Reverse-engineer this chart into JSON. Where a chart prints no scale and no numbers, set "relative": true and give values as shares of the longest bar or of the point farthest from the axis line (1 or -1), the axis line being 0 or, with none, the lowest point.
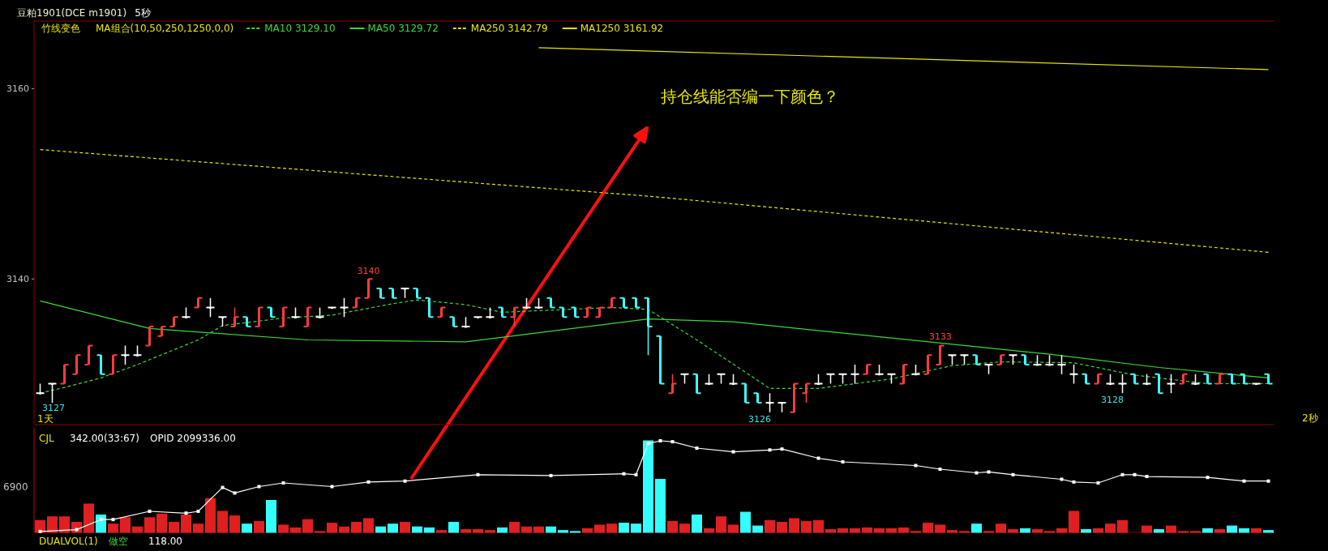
{
  "chart_data": [
    {
      "type": "candlestick",
      "title": "豆粕1901(DCE m1901)",
      "categories": [
        null,
        null,
        null,
        null,
        null,
        null,
        null,
        null,
        null,
        null,
        null,
        null,
        null,
        null,
        null,
        null,
        null,
        null,
        null,
        null,
        null,
        null,
        null,
        null,
        null,
        null,
        null,
        null,
        null,
        null,
        null,
        null,
        null,
        null,
        null,
        null,
        null,
        null,
        null,
        null,
        null,
        null,
        null,
        null,
        null,
        null,
        null,
        null,
        null,
        null,
        null,
        null,
        null,
        null,
        null,
        null,
        null,
        null,
        null,
        null,
        null,
        null,
        null,
        null,
        null,
        null,
        null,
        null,
        null,
        null,
        null,
        null,
        null,
        null,
        null,
        null,
        null,
        null,
        null,
        null,
        null,
        null,
        null,
        null,
        null,
        null,
        null,
        null,
        null,
        null,
        null,
        null,
        null,
        null,
        null,
        null,
        null,
        null,
        null,
        null,
        null,
        null
      ],
      "ohlc": [
        [
          3128,
          3129,
          3128,
          3128
        ],
        [
          3129,
          3129,
          3127,
          3129
        ],
        [
          3129,
          3131,
          3129,
          3131
        ],
        [
          3130,
          3132,
          3130,
          3132
        ],
        [
          3131,
          3133,
          3131,
          3133
        ],
        [
          3132,
          3132,
          3130,
          3130
        ],
        [
          3130,
          3132,
          3130,
          3132
        ],
        [
          3132,
          3133,
          3131,
          3132
        ],
        [
          3132,
          3133,
          3132,
          3132
        ],
        [
          3133,
          3135,
          3133,
          3135
        ],
        [
          3134,
          3135,
          3134,
          3135
        ],
        [
          3135,
          3136,
          3135,
          3136
        ],
        [
          3136,
          3137,
          3136,
          3136
        ],
        [
          3137,
          3138,
          3137,
          3138
        ],
        [
          3137,
          3138,
          3136,
          3137
        ],
        [
          3136,
          3136,
          3135,
          3136
        ],
        [
          3135,
          3137,
          3135,
          3136
        ],
        [
          3136,
          3136,
          3135,
          3135
        ],
        [
          3135,
          3137,
          3135,
          3137
        ],
        [
          3137,
          3137,
          3136,
          3136
        ],
        [
          3135,
          3137,
          3135,
          3137
        ],
        [
          3136,
          3137,
          3136,
          3136
        ],
        [
          3135,
          3137,
          3135,
          3137
        ],
        [
          3136,
          3137,
          3136,
          3136
        ],
        [
          3137,
          3137,
          3137,
          3137
        ],
        [
          3137,
          3138,
          3136,
          3137
        ],
        [
          3137,
          3138,
          3137,
          3138
        ],
        [
          3138,
          3140,
          3138,
          3140
        ],
        [
          3139,
          3139,
          3138,
          3138
        ],
        [
          3139,
          3139,
          3138,
          3138
        ],
        [
          3139,
          3139,
          3138,
          3139
        ],
        [
          3139,
          3139,
          3138,
          3138
        ],
        [
          3138,
          3138,
          3136,
          3136
        ],
        [
          3136,
          3137,
          3136,
          3137
        ],
        [
          3136,
          3136,
          3135,
          3135
        ],
        [
          3135,
          3136,
          3135,
          3135
        ],
        [
          3136,
          3136,
          3136,
          3136
        ],
        [
          3136,
          3137,
          3136,
          3136
        ],
        [
          3137,
          3137,
          3136,
          3136
        ],
        [
          3136,
          3137,
          3135,
          3137
        ],
        [
          3137,
          3138,
          3137,
          3137
        ],
        [
          3137,
          3138,
          3137,
          3137
        ],
        [
          3138,
          3138,
          3137,
          3137
        ],
        [
          3137,
          3137,
          3136,
          3136
        ],
        [
          3137,
          3137,
          3136,
          3136
        ],
        [
          3136,
          3137,
          3136,
          3137
        ],
        [
          3136,
          3137,
          3136,
          3137
        ],
        [
          3137,
          3138,
          3137,
          3138
        ],
        [
          3138,
          3138,
          3137,
          3137
        ],
        [
          3138,
          3138,
          3137,
          3137
        ],
        [
          3138,
          3138,
          3132,
          3135
        ],
        [
          3134,
          3134,
          3129,
          3129
        ],
        [
          3128,
          3130,
          3128,
          3129
        ],
        [
          3130,
          3130,
          3129,
          3130
        ],
        [
          3130,
          3130,
          3128,
          3128
        ],
        [
          3129,
          3130,
          3129,
          3129
        ],
        [
          3130,
          3130,
          3129,
          3130
        ],
        [
          3129,
          3130,
          3129,
          3129
        ],
        [
          3129,
          3129,
          3127,
          3127
        ],
        [
          3128,
          3128,
          3127,
          3127
        ],
        [
          3127,
          3128,
          3126,
          3127
        ],
        [
          3127,
          3127,
          3126,
          3127
        ],
        [
          3126,
          3129,
          3126,
          3129
        ],
        [
          3128,
          3129,
          3127,
          3129
        ],
        [
          3129,
          3130,
          3129,
          3129
        ],
        [
          3130,
          3130,
          3129,
          3130
        ],
        [
          3130,
          3130,
          3129,
          3130
        ],
        [
          3130,
          3131,
          3129,
          3130
        ],
        [
          3130,
          3131,
          3130,
          3131
        ],
        [
          3130,
          3131,
          3130,
          3130
        ],
        [
          3130,
          3130,
          3129,
          3130
        ],
        [
          3129,
          3131,
          3129,
          3131
        ],
        [
          3130,
          3131,
          3130,
          3130
        ],
        [
          3130,
          3132,
          3130,
          3132
        ],
        [
          3131,
          3133,
          3131,
          3133
        ],
        [
          3132,
          3132,
          3131,
          3132
        ],
        [
          3132,
          3132,
          3131,
          3132
        ],
        [
          3132,
          3132,
          3131,
          3131
        ],
        [
          3131,
          3131,
          3130,
          3131
        ],
        [
          3131,
          3132,
          3131,
          3132
        ],
        [
          3132,
          3132,
          3131,
          3132
        ],
        [
          3132,
          3132,
          3131,
          3131
        ],
        [
          3131,
          3132,
          3131,
          3131
        ],
        [
          3131,
          3132,
          3131,
          3131
        ],
        [
          3131,
          3132,
          3130,
          3131
        ],
        [
          3130,
          3131,
          3129,
          3130
        ],
        [
          3130,
          3130,
          3129,
          3129
        ],
        [
          3129,
          3130,
          3129,
          3130
        ],
        [
          3129,
          3130,
          3129,
          3129
        ],
        [
          3129,
          3130,
          3128,
          3129
        ],
        [
          3130,
          3130,
          3129,
          3129
        ],
        [
          3129,
          3130,
          3129,
          3129
        ],
        [
          3130,
          3130,
          3128,
          3128
        ],
        [
          3129,
          3130,
          3128,
          3129
        ],
        [
          3129,
          3130,
          3129,
          3130
        ],
        [
          3129,
          3130,
          3129,
          3129
        ],
        [
          3130,
          3130,
          3129,
          3129
        ],
        [
          3129,
          3130,
          3129,
          3130
        ],
        [
          3130,
          3130,
          3129,
          3129
        ],
        [
          3130,
          3130,
          3129,
          3129
        ],
        [
          3129,
          3129,
          3129,
          3129
        ],
        [
          3130,
          3130,
          3129,
          3129
        ]
      ],
      "colors": [
        "#ffffff",
        "#ffffff",
        "#ff3c3c",
        "#ff3c3c",
        "#ff3c3c",
        "#40ffff",
        "#ff3c3c",
        "#ffffff",
        "#ffffff",
        "#ff3c3c",
        "#ff3c3c",
        "#ff3c3c",
        "#ffffff",
        "#ff3c3c",
        "#ffffff",
        "#ffffff",
        "#ff3c3c",
        "#40ffff",
        "#ff3c3c",
        "#40ffff",
        "#ff3c3c",
        "#ffffff",
        "#ff3c3c",
        "#ffffff",
        "#ffffff",
        "#ffffff",
        "#ff3c3c",
        "#ff3c3c",
        "#40ffff",
        "#40ffff",
        "#ffffff",
        "#40ffff",
        "#40ffff",
        "#ff3c3c",
        "#40ffff",
        "#ffffff",
        "#ffffff",
        "#ffffff",
        "#40ffff",
        "#ff3c3c",
        "#ffffff",
        "#ffffff",
        "#40ffff",
        "#40ffff",
        "#40ffff",
        "#ff3c3c",
        "#ff3c3c",
        "#ff3c3c",
        "#40ffff",
        "#40ffff",
        "#40ffff",
        "#40ffff",
        "#ff3c3c",
        "#ffffff",
        "#40ffff",
        "#ffffff",
        "#ffffff",
        "#ffffff",
        "#40ffff",
        "#40ffff",
        "#ffffff",
        "#ffffff",
        "#ff3c3c",
        "#ff3c3c",
        "#ffffff",
        "#ffffff",
        "#ffffff",
        "#ffffff",
        "#ff3c3c",
        "#ffffff",
        "#ffffff",
        "#ff3c3c",
        "#ffffff",
        "#ff3c3c",
        "#ff3c3c",
        "#ffffff",
        "#ffffff",
        "#40ffff",
        "#ffffff",
        "#ff3c3c",
        "#ffffff",
        "#40ffff",
        "#ffffff",
        "#ffffff",
        "#ffffff",
        "#ffffff",
        "#40ffff",
        "#ff3c3c",
        "#ffffff",
        "#ffffff",
        "#40ffff",
        "#ffffff",
        "#40ffff",
        "#ffffff",
        "#ff3c3c",
        "#ffffff",
        "#40ffff",
        "#ff3c3c",
        "#40ffff",
        "#40ffff",
        "#ffffff",
        "#40ffff"
      ],
      "series": [
        {
          "name": "MA10 3129.10",
          "type": "line",
          "color": "#3ad83a",
          "line_style": "dashed",
          "values": [
            3128.0,
            null,
            3128.6,
            null,
            null,
            3129.6,
            null,
            null,
            3131.0,
            null,
            null,
            null,
            null,
            3133.6,
            null,
            3135.1,
            null,
            null,
            null,
            null,
            3135.9,
            null,
            null,
            null,
            3136.2,
            null,
            null,
            null,
            null,
            3137.4,
            null,
            3137.8,
            null,
            null,
            null,
            3137.3,
            null,
            null,
            3136.5,
            null,
            null,
            null,
            null,
            null,
            null,
            null,
            null,
            3137.0,
            null,
            null,
            3136.8,
            null,
            null,
            null,
            3133.6,
            null,
            null,
            null,
            null,
            null,
            3128.5,
            null,
            null,
            null,
            3128.5,
            null,
            null,
            null,
            null,
            null,
            3129.5,
            null,
            null,
            null,
            null,
            3130.9,
            null,
            null,
            null,
            3131.3,
            null,
            null,
            null,
            null,
            null,
            3131.2,
            null,
            null,
            null,
            null,
            3129.9,
            null,
            null,
            null,
            null,
            null,
            3129.0,
            null,
            null,
            null,
            null,
            3129.0
          ]
        },
        {
          "name": "MA50 3129.72",
          "type": "line",
          "color": "#3ad83a",
          "line_style": "solid",
          "values": [
            3137.7,
            null,
            null,
            null,
            null,
            null,
            null,
            null,
            null,
            3134.8,
            null,
            null,
            null,
            null,
            null,
            null,
            null,
            null,
            null,
            null,
            null,
            null,
            3133.6,
            null,
            null,
            null,
            null,
            null,
            null,
            null,
            null,
            null,
            null,
            null,
            null,
            3133.4,
            null,
            null,
            null,
            null,
            null,
            null,
            null,
            null,
            null,
            null,
            null,
            null,
            null,
            null,
            3135.8,
            null,
            null,
            null,
            null,
            null,
            null,
            3135.5,
            null,
            null,
            null,
            null,
            null,
            null,
            null,
            null,
            null,
            null,
            null,
            null,
            3133.8,
            null,
            null,
            null,
            null,
            null,
            null,
            null,
            null,
            null,
            null,
            null,
            null,
            3132.1,
            null,
            null,
            null,
            null,
            null,
            null,
            null,
            null,
            3130.7,
            null,
            null,
            null,
            null,
            null,
            null,
            null,
            null,
            3129.6
          ]
        },
        {
          "name": "MA250 3142.79",
          "type": "line",
          "color": "#e6e600",
          "line_style": "dashed",
          "values": [
            3153.6,
            null,
            null,
            null,
            null,
            null,
            null,
            null,
            null,
            null,
            null,
            null,
            null,
            null,
            null,
            null,
            null,
            null,
            null,
            null,
            null,
            null,
            null,
            null,
            null,
            null,
            null,
            null,
            null,
            null,
            null,
            null,
            null,
            null,
            null,
            null,
            null,
            null,
            null,
            null,
            null,
            null,
            null,
            null,
            null,
            null,
            null,
            null,
            null,
            null,
            3148.7,
            null,
            null,
            null,
            null,
            null,
            null,
            null,
            null,
            null,
            null,
            null,
            null,
            null,
            null,
            null,
            null,
            null,
            null,
            null,
            null,
            null,
            null,
            null,
            null,
            null,
            null,
            null,
            null,
            null,
            null,
            null,
            null,
            null,
            null,
            null,
            null,
            null,
            null,
            null,
            null,
            null,
            null,
            null,
            null,
            null,
            null,
            null,
            null,
            null,
            null,
            3142.8
          ]
        },
        {
          "name": "MA1250 3161.92",
          "type": "line",
          "color": "#e6e600",
          "line_style": "solid",
          "values": [
            null,
            null,
            null,
            null,
            null,
            null,
            null,
            null,
            null,
            null,
            null,
            null,
            null,
            null,
            null,
            null,
            null,
            null,
            null,
            null,
            null,
            null,
            null,
            null,
            null,
            null,
            null,
            null,
            null,
            null,
            null,
            null,
            null,
            null,
            null,
            null,
            null,
            null,
            null,
            null,
            null,
            3164.3,
            null,
            null,
            null,
            null,
            null,
            null,
            null,
            null,
            null,
            null,
            null,
            null,
            null,
            null,
            null,
            null,
            null,
            null,
            null,
            null,
            null,
            null,
            null,
            null,
            null,
            null,
            null,
            null,
            null,
            null,
            null,
            null,
            null,
            null,
            null,
            null,
            null,
            null,
            null,
            null,
            null,
            null,
            null,
            null,
            null,
            null,
            null,
            null,
            null,
            null,
            null,
            null,
            null,
            null,
            null,
            null,
            null,
            null,
            null,
            3162.0
          ]
        }
      ],
      "ylim": [
        3124.7,
        3167.1
      ],
      "yticks": [
        3140,
        3160
      ],
      "legend": "top left",
      "annotations": [
        "5秒",
        "竹线变色",
        "MA组合(10,50,250,1250,0,0)",
        "1天",
        "2秒",
        "持仓线能否编一下颜色？",
        "3127",
        "3126",
        "3128",
        "3133",
        {
          "text": "3140",
          "y": 3140
        }
      ]
    },
    {
      "type": "bar",
      "title": "CJL",
      "relative": true,
      "categories": [
        null,
        null,
        null,
        null,
        null,
        null,
        null,
        null,
        null,
        null,
        null,
        null,
        null,
        null,
        null,
        null,
        null,
        null,
        null,
        null,
        null,
        null,
        null,
        null,
        null,
        null,
        null,
        null,
        null,
        null,
        null,
        null,
        null,
        null,
        null,
        null,
        null,
        null,
        null,
        null,
        null,
        null,
        null,
        null,
        null,
        null,
        null,
        null,
        null,
        null,
        null,
        null,
        null,
        null,
        null,
        null,
        null,
        null,
        null,
        null,
        null,
        null,
        null,
        null,
        null,
        null,
        null,
        null,
        null,
        null,
        null,
        null,
        null,
        null,
        null,
        null,
        null,
        null,
        null,
        null,
        null,
        null,
        null,
        null,
        null,
        null,
        null,
        null,
        null,
        null,
        null,
        null,
        null,
        null,
        null,
        null,
        null,
        null,
        null,
        null,
        null,
        null
      ],
      "values": [
        0.13,
        0.17,
        0.17,
        0.11,
        0.31,
        0.19,
        0.09,
        0.16,
        0.06,
        0.16,
        0.2,
        0.11,
        0.19,
        0.09,
        0.37,
        0.23,
        0.18,
        0.09,
        0.12,
        0.35,
        0.08,
        0.05,
        0.14,
        0.01,
        0.1,
        0.06,
        0.11,
        0.15,
        0.06,
        0.09,
        0.11,
        0.06,
        0.05,
        0.02,
        0.11,
        0.03,
        0.03,
        0.02,
        0.05,
        0.11,
        0.06,
        0.06,
        0.06,
        0.02,
        0.01,
        0.04,
        0.08,
        0.09,
        0.1,
        0.09,
        1,
        0.58,
        0.12,
        0.09,
        0.19,
        0.04,
        0.17,
        0.08,
        0.22,
        0.07,
        0.13,
        0.11,
        0.15,
        0.12,
        0.13,
        0.03,
        0.04,
        0.04,
        0.05,
        0.04,
        0.04,
        0.05,
        0.01,
        0.1,
        0.08,
        0.02,
        0.01,
        0.09,
        0.01,
        0.09,
        0.03,
        0.04,
        0.03,
        0.01,
        0.04,
        0.23,
        0.03,
        0.04,
        0.09,
        0.13,
        0,
        0.07,
        0.03,
        0.07,
        0.01,
        0.01,
        0.04,
        0.03,
        0.07,
        0.04,
        0.04,
        0.02
      ],
      "colors": [
        "#e02020",
        "#e02020",
        "#e02020",
        "#e02020",
        "#e02020",
        "#33ffff",
        "#e02020",
        "#e02020",
        "#e02020",
        "#e02020",
        "#e02020",
        "#e02020",
        "#e02020",
        "#e02020",
        "#e02020",
        "#e02020",
        "#e02020",
        "#33ffff",
        "#e02020",
        "#33ffff",
        "#e02020",
        "#e02020",
        "#e02020",
        "#e02020",
        "#e02020",
        "#e02020",
        "#e02020",
        "#e02020",
        "#33ffff",
        "#33ffff",
        "#e02020",
        "#33ffff",
        "#33ffff",
        "#e02020",
        "#33ffff",
        "#e02020",
        "#e02020",
        "#e02020",
        "#33ffff",
        "#e02020",
        "#e02020",
        "#e02020",
        "#33ffff",
        "#33ffff",
        "#33ffff",
        "#e02020",
        "#e02020",
        "#e02020",
        "#33ffff",
        "#33ffff",
        "#33ffff",
        "#33ffff",
        "#e02020",
        "#e02020",
        "#33ffff",
        "#e02020",
        "#e02020",
        "#e02020",
        "#33ffff",
        "#33ffff",
        "#e02020",
        "#e02020",
        "#e02020",
        "#e02020",
        "#e02020",
        "#e02020",
        "#e02020",
        "#e02020",
        "#e02020",
        "#e02020",
        "#e02020",
        "#e02020",
        "#e02020",
        "#e02020",
        "#e02020",
        "#e02020",
        "#e02020",
        "#33ffff",
        "#e02020",
        "#e02020",
        "#e02020",
        "#33ffff",
        "#e02020",
        "#e02020",
        "#e02020",
        "#e02020",
        "#33ffff",
        "#e02020",
        "#e02020",
        "#e02020",
        "#e02020",
        "#e02020",
        "#33ffff",
        "#e02020",
        "#e02020",
        "#e02020",
        "#33ffff",
        "#e02020",
        "#33ffff",
        "#33ffff",
        "#e02020",
        "#33ffff"
      ],
      "annotations": [
        "342.00(33:67)",
        "6900",
        "DUALVOL(1)",
        "做空",
        "118.00"
      ]
    },
    {
      "type": "line",
      "relative": true,
      "categories": [
        null,
        null,
        null,
        null,
        null,
        null,
        null,
        null,
        null,
        null,
        null,
        null,
        null,
        null,
        null,
        null,
        null,
        null,
        null,
        null,
        null,
        null,
        null,
        null,
        null,
        null,
        null,
        null,
        null,
        null,
        null,
        null,
        null,
        null,
        null,
        null,
        null,
        null,
        null,
        null,
        null,
        null,
        null,
        null,
        null,
        null,
        null,
        null,
        null,
        null,
        null,
        null,
        null,
        null,
        null,
        null,
        null,
        null,
        null,
        null,
        null,
        null,
        null,
        null,
        null,
        null,
        null,
        null,
        null,
        null,
        null,
        null,
        null,
        null,
        null,
        null,
        null,
        null,
        null,
        null,
        null,
        null,
        null,
        null,
        null,
        null,
        null,
        null,
        null,
        null,
        null,
        null,
        null,
        null,
        null,
        null,
        null,
        null,
        null,
        null,
        null,
        null
      ],
      "series": [
        {
          "name": "OPID 2099336.00",
          "color": "#ffffff",
          "marker": "square",
          "values": [
            0.01,
            null,
            null,
            0.03,
            null,
            0.14,
            0.14,
            null,
            null,
            0.23,
            null,
            null,
            0.21,
            0.23,
            null,
            0.49,
            0.43,
            null,
            0.5,
            null,
            0.54,
            null,
            null,
            null,
            0.5,
            null,
            null,
            0.55,
            null,
            null,
            0.56,
            null,
            null,
            null,
            null,
            null,
            0.63,
            null,
            null,
            null,
            null,
            null,
            0.62,
            null,
            null,
            null,
            null,
            null,
            0.64,
            0.63,
            0.97,
            1,
            0.99,
            null,
            0.92,
            null,
            null,
            0.88,
            null,
            null,
            0.9,
            0.91,
            null,
            null,
            0.81,
            null,
            0.77,
            null,
            null,
            null,
            null,
            null,
            0.73,
            null,
            0.69,
            null,
            null,
            0.65,
            0.66,
            null,
            0.63,
            null,
            null,
            null,
            0.58,
            0.55,
            null,
            0.54,
            null,
            0.63,
            0.63,
            0.61,
            null,
            null,
            null,
            null,
            0.6,
            null,
            null,
            0.56,
            null,
            0.56
          ]
        }
      ]
    }
  ]
}
